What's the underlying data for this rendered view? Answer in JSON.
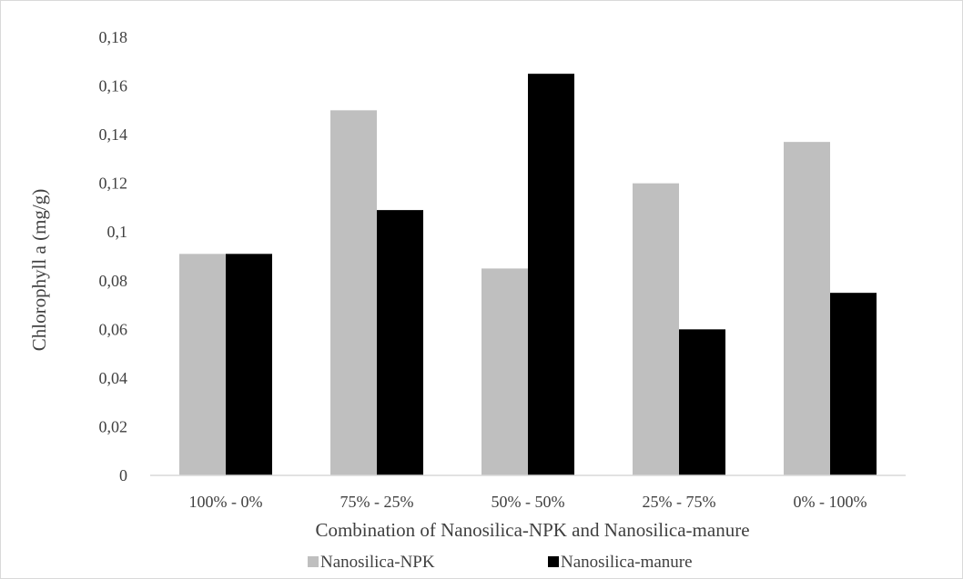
{
  "chart_data": {
    "type": "bar",
    "title": "",
    "xlabel": "Combination of Nanosilica-NPK and Nanosilica-manure",
    "ylabel": "Chlorophyll a (mg/g)",
    "ylim": [
      0,
      0.18
    ],
    "yticks": [
      "0",
      "0,02",
      "0,04",
      "0,06",
      "0,08",
      "0,1",
      "0,12",
      "0,14",
      "0,16",
      "0,18"
    ],
    "grid": false,
    "legend_position": "bottom",
    "categories": [
      "100% - 0%",
      "75% - 25%",
      "50% - 50%",
      "25% - 75%",
      "0% - 100%"
    ],
    "series": [
      {
        "name": "Nanosilica-NPK",
        "color": "#bfbfbf",
        "values": [
          0.091,
          0.15,
          0.085,
          0.12,
          0.137
        ]
      },
      {
        "name": "Nanosilica-manure",
        "color": "#000000",
        "values": [
          0.091,
          0.109,
          0.165,
          0.06,
          0.075
        ]
      }
    ]
  }
}
